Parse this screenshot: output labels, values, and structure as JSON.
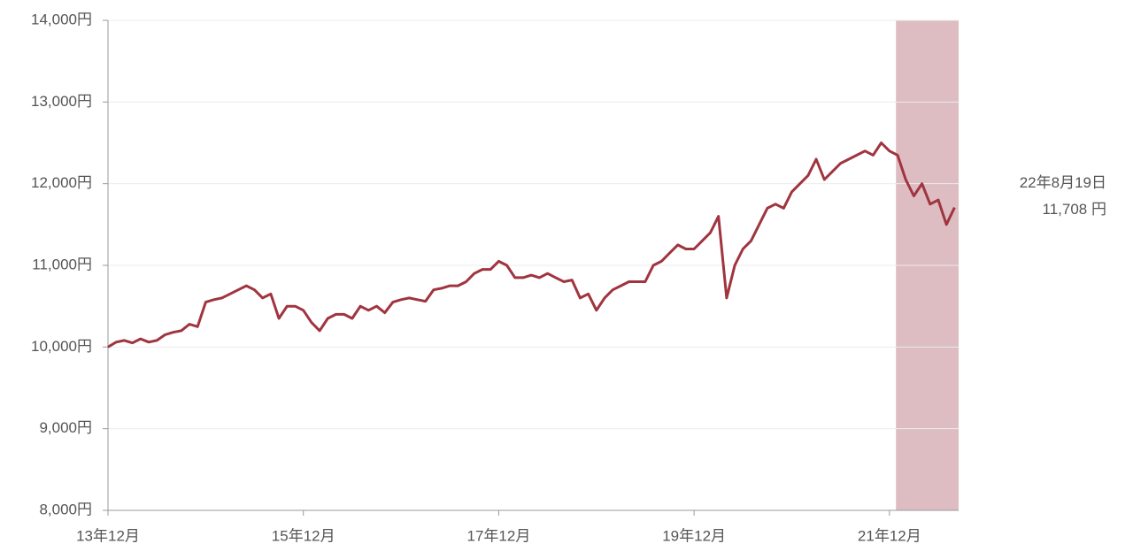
{
  "chart_data": {
    "type": "line",
    "categories": [
      "13年12月",
      null,
      null,
      null,
      null,
      null,
      null,
      null,
      null,
      null,
      null,
      null,
      null,
      null,
      null,
      null,
      null,
      null,
      null,
      null,
      null,
      null,
      null,
      null,
      "15年12月",
      null,
      null,
      null,
      null,
      null,
      null,
      null,
      null,
      null,
      null,
      null,
      null,
      null,
      null,
      null,
      null,
      null,
      null,
      null,
      null,
      null,
      null,
      null,
      "17年12月",
      null,
      null,
      null,
      null,
      null,
      null,
      null,
      null,
      null,
      null,
      null,
      null,
      null,
      null,
      null,
      null,
      null,
      null,
      null,
      null,
      null,
      null,
      null,
      "19年12月",
      null,
      null,
      null,
      null,
      null,
      null,
      null,
      null,
      null,
      null,
      null,
      null,
      null,
      null,
      null,
      null,
      null,
      null,
      null,
      null,
      null,
      null,
      null,
      "21年12月",
      null,
      null,
      null,
      null,
      null,
      null,
      null,
      null
    ],
    "values": [
      10000,
      10060,
      10080,
      10050,
      10100,
      10060,
      10080,
      10150,
      10180,
      10200,
      10280,
      10250,
      10550,
      10580,
      10600,
      10650,
      10700,
      10750,
      10700,
      10600,
      10650,
      10350,
      10500,
      10500,
      10450,
      10300,
      10200,
      10350,
      10400,
      10400,
      10350,
      10500,
      10450,
      10500,
      10420,
      10550,
      10580,
      10600,
      10580,
      10560,
      10700,
      10720,
      10750,
      10750,
      10800,
      10900,
      10950,
      10950,
      11050,
      11000,
      10850,
      10850,
      10880,
      10850,
      10900,
      10850,
      10800,
      10820,
      10600,
      10650,
      10450,
      10600,
      10700,
      10750,
      10800,
      10800,
      10800,
      11000,
      11050,
      11150,
      11250,
      11200,
      11200,
      11300,
      11400,
      11600,
      10600,
      11000,
      11200,
      11300,
      11500,
      11700,
      11750,
      11700,
      11900,
      12000,
      12100,
      12300,
      12050,
      12150,
      12250,
      12300,
      12350,
      12400,
      12350,
      12500,
      12400,
      12350,
      12050,
      11850,
      12000,
      11750,
      11800,
      11500,
      11708
    ],
    "color": "#a0343f",
    "ylim": [
      8000,
      14000
    ],
    "yticks": [
      {
        "value": 8000,
        "label": "8,000円"
      },
      {
        "value": 9000,
        "label": "9,000円"
      },
      {
        "value": 10000,
        "label": "10,000円"
      },
      {
        "value": 11000,
        "label": "11,000円"
      },
      {
        "value": 12000,
        "label": "12,000円"
      },
      {
        "value": 13000,
        "label": "13,000円"
      },
      {
        "value": 14000,
        "label": "14,000円"
      }
    ],
    "grid": true,
    "highlight": {
      "xrange": [
        96.8,
        104.5
      ],
      "color": "#ddbdc2"
    },
    "annotation": {
      "date": "22年8月19日",
      "value": 11708,
      "label": "11,708 円"
    }
  }
}
